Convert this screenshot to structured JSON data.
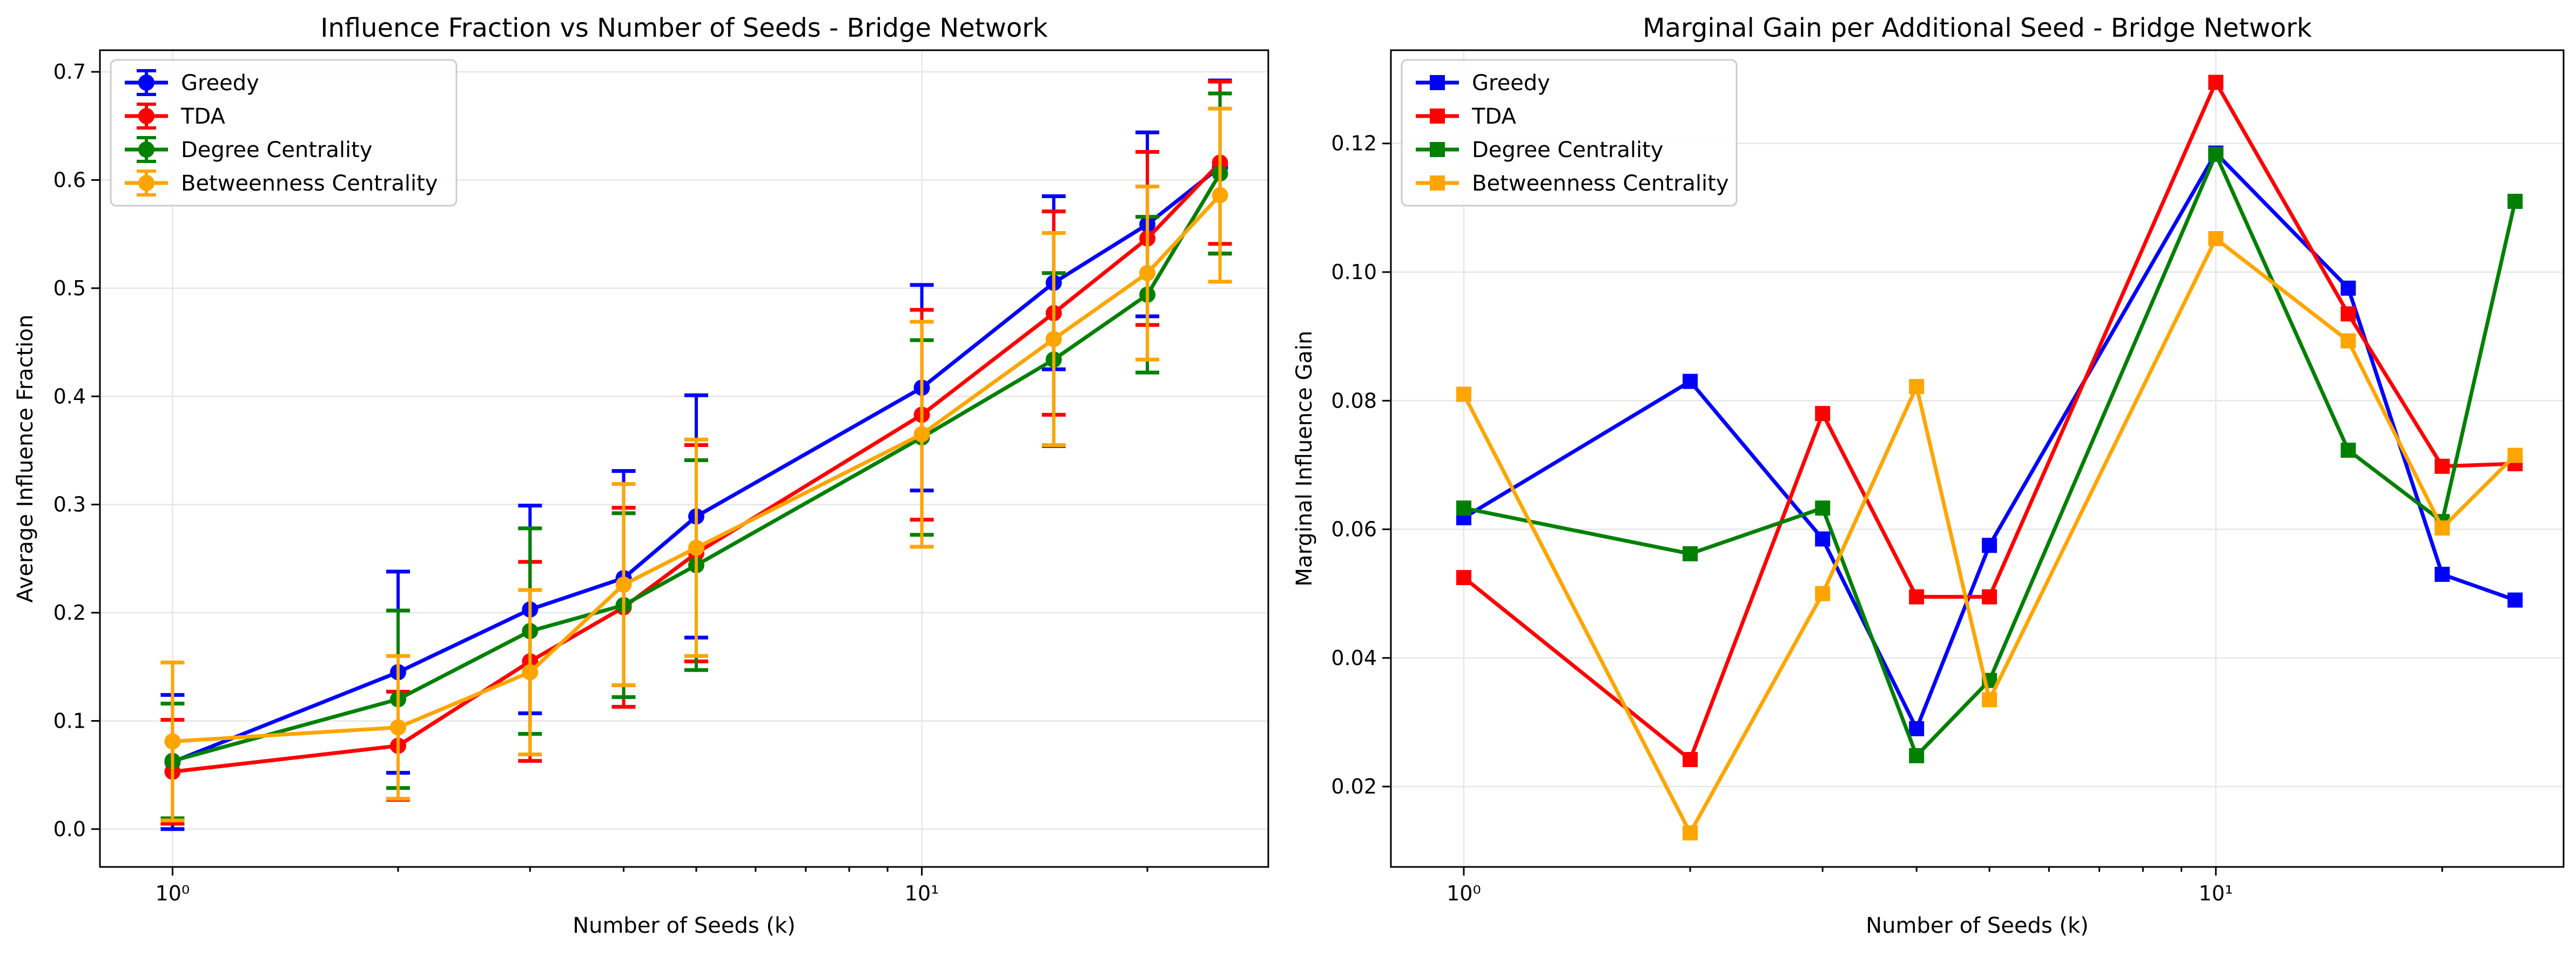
{
  "chart_data": [
    {
      "type": "line",
      "title": "Influence Fraction vs Number of Seeds - Bridge Network",
      "xlabel": "Number of Seeds (k)",
      "ylabel": "Average Influence Fraction",
      "xscale": "log",
      "xlim": [
        0.8,
        29
      ],
      "ylim": [
        -0.035,
        0.72
      ],
      "xticks": [
        1,
        10
      ],
      "xtick_labels": [
        "10⁰",
        "10¹"
      ],
      "yticks": [
        0.0,
        0.1,
        0.2,
        0.3,
        0.4,
        0.5,
        0.6,
        0.7
      ],
      "ytick_labels": [
        "0.0",
        "0.1",
        "0.2",
        "0.3",
        "0.4",
        "0.5",
        "0.6",
        "0.7"
      ],
      "grid": true,
      "legend": "top-left",
      "marker": "circle",
      "error_bars": true,
      "x": [
        1,
        2,
        3,
        4,
        5,
        10,
        15,
        20,
        25
      ],
      "series": [
        {
          "name": "Greedy",
          "color": "#0000ff",
          "values": [
            0.062,
            0.145,
            0.203,
            0.232,
            0.289,
            0.408,
            0.505,
            0.559,
            0.612
          ],
          "errors": [
            0.062,
            0.093,
            0.096,
            0.099,
            0.112,
            0.095,
            0.08,
            0.085,
            0.08
          ]
        },
        {
          "name": "TDA",
          "color": "#ff0000",
          "values": [
            0.053,
            0.077,
            0.155,
            0.205,
            0.255,
            0.383,
            0.477,
            0.546,
            0.616
          ],
          "errors": [
            0.048,
            0.05,
            0.092,
            0.092,
            0.1,
            0.097,
            0.094,
            0.08,
            0.075
          ]
        },
        {
          "name": "Degree Centrality",
          "color": "#008000",
          "values": [
            0.063,
            0.12,
            0.183,
            0.207,
            0.244,
            0.362,
            0.434,
            0.494,
            0.606
          ],
          "errors": [
            0.053,
            0.082,
            0.095,
            0.085,
            0.097,
            0.09,
            0.08,
            0.072,
            0.074
          ]
        },
        {
          "name": "Betweenness Centrality",
          "color": "#ffa500",
          "values": [
            0.081,
            0.094,
            0.145,
            0.226,
            0.26,
            0.365,
            0.453,
            0.514,
            0.586
          ],
          "errors": [
            0.073,
            0.066,
            0.076,
            0.093,
            0.1,
            0.104,
            0.098,
            0.08,
            0.08
          ]
        }
      ]
    },
    {
      "type": "line",
      "title": "Marginal Gain per Additional Seed - Bridge Network",
      "xlabel": "Number of Seeds (k)",
      "ylabel": "Marginal Influence Gain",
      "xscale": "log",
      "xlim": [
        0.8,
        29
      ],
      "ylim": [
        0.0075,
        0.1345
      ],
      "xticks": [
        1,
        10
      ],
      "xtick_labels": [
        "10⁰",
        "10¹"
      ],
      "yticks": [
        0.02,
        0.04,
        0.06,
        0.08,
        0.1,
        0.12
      ],
      "ytick_labels": [
        "0.02",
        "0.04",
        "0.06",
        "0.08",
        "0.10",
        "0.12"
      ],
      "grid": true,
      "legend": "top-left",
      "marker": "square",
      "error_bars": false,
      "x": [
        1,
        2,
        3,
        4,
        5,
        10,
        15,
        20,
        25
      ],
      "series": [
        {
          "name": "Greedy",
          "color": "#0000ff",
          "values": [
            0.0618,
            0.083,
            0.0585,
            0.029,
            0.0575,
            0.1185,
            0.0975,
            0.053,
            0.049
          ]
        },
        {
          "name": "TDA",
          "color": "#ff0000",
          "values": [
            0.0525,
            0.0242,
            0.078,
            0.0495,
            0.0495,
            0.1295,
            0.0935,
            0.0698,
            0.0702
          ]
        },
        {
          "name": "Degree Centrality",
          "color": "#008000",
          "values": [
            0.0633,
            0.0562,
            0.0633,
            0.0248,
            0.0365,
            0.1183,
            0.0723,
            0.0612,
            0.111
          ]
        },
        {
          "name": "Betweenness Centrality",
          "color": "#ffa500",
          "values": [
            0.081,
            0.0128,
            0.05,
            0.0822,
            0.0335,
            0.1052,
            0.0893,
            0.0602,
            0.0715
          ]
        }
      ]
    }
  ]
}
